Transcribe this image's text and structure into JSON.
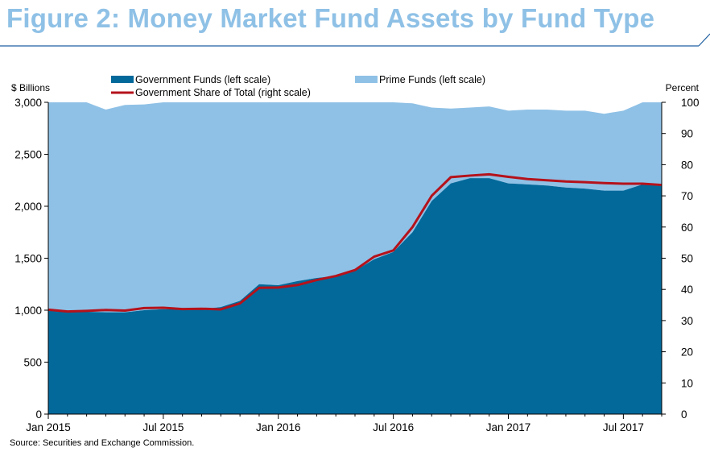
{
  "header": {
    "title": "Figure 2:  Money Market Fund Assets by Fund Type"
  },
  "colors": {
    "title": "#8fc1e6",
    "government_area": "#03699b",
    "prime_area": "#8fc1e6",
    "share_line": "#b5121b",
    "rule": "#1f5fa0"
  },
  "chart_data": {
    "type": "area",
    "left_axis_unit": "$ Billions",
    "right_axis_unit": "Percent",
    "ylim_left": [
      0,
      3000
    ],
    "ylim_right": [
      0,
      100
    ],
    "left_ticks": [
      "0",
      "500",
      "1,000",
      "1,500",
      "2,000",
      "2,500",
      "3,000"
    ],
    "right_ticks": [
      "0",
      "10",
      "20",
      "30",
      "40",
      "50",
      "60",
      "70",
      "80",
      "90",
      "100"
    ],
    "x_ticks": [
      "Jan 2015",
      "Jul 2015",
      "Jan 2016",
      "Jul 2016",
      "Jan 2017",
      "Jul 2017"
    ],
    "x": [
      "2015-01",
      "2015-02",
      "2015-03",
      "2015-04",
      "2015-05",
      "2015-06",
      "2015-07",
      "2015-08",
      "2015-09",
      "2015-10",
      "2015-11",
      "2015-12",
      "2016-01",
      "2016-02",
      "2016-03",
      "2016-04",
      "2016-05",
      "2016-06",
      "2016-07",
      "2016-08",
      "2016-09",
      "2016-10",
      "2016-11",
      "2016-12",
      "2017-01",
      "2017-02",
      "2017-03",
      "2017-04",
      "2017-05",
      "2017-06",
      "2017-07",
      "2017-08",
      "2017-09"
    ],
    "legend": [
      {
        "key": "government",
        "label": "Government Funds (left scale)"
      },
      {
        "key": "prime",
        "label": "Prime Funds (left scale)"
      },
      {
        "key": "share",
        "label": "Government Share of Total (right scale)"
      }
    ],
    "series": [
      {
        "name": "Government Funds (left scale)",
        "key": "government",
        "kind": "area",
        "axis": "left",
        "values": [
          1000,
          985,
          985,
          980,
          980,
          1000,
          1010,
          1010,
          1010,
          1030,
          1090,
          1250,
          1240,
          1280,
          1310,
          1330,
          1380,
          1490,
          1560,
          1750,
          2050,
          2220,
          2270,
          2270,
          2220,
          2210,
          2200,
          2180,
          2170,
          2150,
          2150,
          2210,
          2210
        ]
      },
      {
        "name": "Prime Funds (left scale)",
        "key": "prime",
        "kind": "area",
        "axis": "left",
        "values": [
          2000,
          2015,
          2015,
          1950,
          1995,
          1980,
          2040,
          2020,
          2010,
          1980,
          1920,
          1780,
          1790,
          1760,
          1700,
          1670,
          1630,
          1540,
          1460,
          1240,
          900,
          720,
          680,
          690,
          700,
          720,
          730,
          740,
          750,
          740,
          770,
          800,
          800
        ]
      },
      {
        "name": "Government Share of Total (right scale)",
        "key": "share",
        "kind": "line",
        "axis": "right",
        "values": [
          33.5,
          32.9,
          33.1,
          33.4,
          33.2,
          34.0,
          34.1,
          33.7,
          33.8,
          33.6,
          35.5,
          40.5,
          40.6,
          41.4,
          43.0,
          44.3,
          46.2,
          50.5,
          52.5,
          60.0,
          70.0,
          76.0,
          76.5,
          76.9,
          76.1,
          75.4,
          75.0,
          74.6,
          74.4,
          74.1,
          73.9,
          73.9,
          73.5
        ]
      }
    ]
  },
  "footer": {
    "source": "Source: Securities and Exchange Commission."
  }
}
